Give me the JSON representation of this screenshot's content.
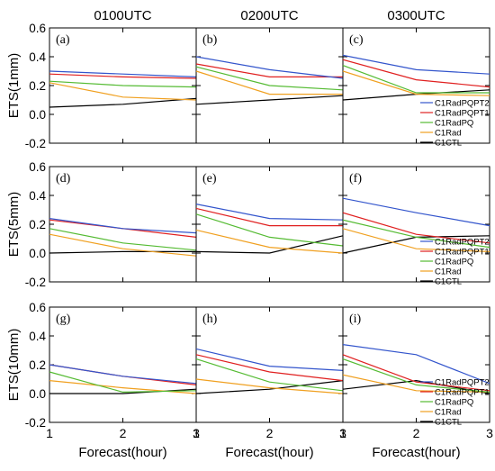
{
  "chart_data": {
    "type": "line",
    "x": [
      1,
      2,
      3
    ],
    "xlabel": "Forecast(hour)",
    "xlim": [
      1,
      3
    ],
    "ylim": [
      -0.2,
      0.6
    ],
    "yticks": [
      "-0.2",
      "0.0",
      "0.2",
      "0.4",
      "0.6"
    ],
    "xticks": [
      "1",
      "2",
      "3"
    ],
    "grid": false,
    "legend_location": "right",
    "legend_panels": [
      "c",
      "f",
      "i"
    ],
    "series_colors": {
      "C1RadPQPT2": "#3355cc",
      "C1RadPQPT1": "#e02020",
      "C1RadPQ": "#55bb33",
      "C1Rad": "#f0a020",
      "C1CTL": "#000000"
    },
    "series_names": [
      "C1RadPQPT2",
      "C1RadPQPT1",
      "C1RadPQ",
      "C1Rad",
      "C1CTL"
    ],
    "column_titles": [
      "0100UTC",
      "0200UTC",
      "0300UTC"
    ],
    "row_ylabels": [
      "ETS(1mm)",
      "ETS(5mm)",
      "ETS(10mm)"
    ],
    "panels": [
      {
        "label": "(a)",
        "series": [
          {
            "name": "C1RadPQPT2",
            "values": [
              0.3,
              0.28,
              0.26
            ]
          },
          {
            "name": "C1RadPQPT1",
            "values": [
              0.28,
              0.26,
              0.25
            ]
          },
          {
            "name": "C1RadPQ",
            "values": [
              0.23,
              0.2,
              0.19
            ]
          },
          {
            "name": "C1Rad",
            "values": [
              0.22,
              0.12,
              0.1
            ]
          },
          {
            "name": "C1CTL",
            "values": [
              0.05,
              0.07,
              0.11
            ]
          }
        ]
      },
      {
        "label": "(b)",
        "series": [
          {
            "name": "C1RadPQPT2",
            "values": [
              0.4,
              0.31,
              0.25
            ]
          },
          {
            "name": "C1RadPQPT1",
            "values": [
              0.35,
              0.26,
              0.26
            ]
          },
          {
            "name": "C1RadPQ",
            "values": [
              0.33,
              0.2,
              0.17
            ]
          },
          {
            "name": "C1Rad",
            "values": [
              0.3,
              0.14,
              0.14
            ]
          },
          {
            "name": "C1CTL",
            "values": [
              0.07,
              0.1,
              0.13
            ]
          }
        ]
      },
      {
        "label": "(c)",
        "series": [
          {
            "name": "C1RadPQPT2",
            "values": [
              0.41,
              0.31,
              0.28
            ]
          },
          {
            "name": "C1RadPQPT1",
            "values": [
              0.38,
              0.24,
              0.19
            ]
          },
          {
            "name": "C1RadPQ",
            "values": [
              0.34,
              0.15,
              0.15
            ]
          },
          {
            "name": "C1Rad",
            "values": [
              0.3,
              0.14,
              0.13
            ]
          },
          {
            "name": "C1CTL",
            "values": [
              0.1,
              0.14,
              0.17
            ]
          }
        ]
      },
      {
        "label": "(d)",
        "series": [
          {
            "name": "C1RadPQPT2",
            "values": [
              0.24,
              0.17,
              0.14
            ]
          },
          {
            "name": "C1RadPQPT1",
            "values": [
              0.23,
              0.17,
              0.11
            ]
          },
          {
            "name": "C1RadPQ",
            "values": [
              0.17,
              0.07,
              0.02
            ]
          },
          {
            "name": "C1Rad",
            "values": [
              0.13,
              0.03,
              -0.02
            ]
          },
          {
            "name": "C1CTL",
            "values": [
              0.0,
              0.01,
              0.01
            ]
          }
        ]
      },
      {
        "label": "(e)",
        "series": [
          {
            "name": "C1RadPQPT2",
            "values": [
              0.34,
              0.24,
              0.23
            ]
          },
          {
            "name": "C1RadPQPT1",
            "values": [
              0.31,
              0.19,
              0.19
            ]
          },
          {
            "name": "C1RadPQ",
            "values": [
              0.27,
              0.11,
              0.05
            ]
          },
          {
            "name": "C1Rad",
            "values": [
              0.16,
              0.04,
              0.0
            ]
          },
          {
            "name": "C1CTL",
            "values": [
              0.01,
              0.0,
              0.12
            ]
          }
        ]
      },
      {
        "label": "(f)",
        "series": [
          {
            "name": "C1RadPQPT2",
            "values": [
              0.38,
              0.28,
              0.19
            ]
          },
          {
            "name": "C1RadPQPT1",
            "values": [
              0.28,
              0.13,
              0.07
            ]
          },
          {
            "name": "C1RadPQ",
            "values": [
              0.23,
              0.11,
              0.04
            ]
          },
          {
            "name": "C1Rad",
            "values": [
              0.17,
              0.03,
              0.01
            ]
          },
          {
            "name": "C1CTL",
            "values": [
              0.0,
              0.11,
              0.12
            ]
          }
        ]
      },
      {
        "label": "(g)",
        "series": [
          {
            "name": "C1RadPQPT2",
            "values": [
              0.2,
              0.12,
              0.07
            ]
          },
          {
            "name": "C1RadPQPT1",
            "values": [
              0.2,
              0.12,
              0.06
            ]
          },
          {
            "name": "C1RadPQ",
            "values": [
              0.15,
              0.01,
              0.02
            ]
          },
          {
            "name": "C1Rad",
            "values": [
              0.09,
              0.04,
              0.0
            ]
          },
          {
            "name": "C1CTL",
            "values": [
              0.0,
              0.0,
              0.03
            ]
          }
        ]
      },
      {
        "label": "(h)",
        "series": [
          {
            "name": "C1RadPQPT2",
            "values": [
              0.31,
              0.19,
              0.16
            ]
          },
          {
            "name": "C1RadPQPT1",
            "values": [
              0.27,
              0.15,
              0.09
            ]
          },
          {
            "name": "C1RadPQ",
            "values": [
              0.24,
              0.08,
              0.02
            ]
          },
          {
            "name": "C1Rad",
            "values": [
              0.1,
              0.04,
              0.0
            ]
          },
          {
            "name": "C1CTL",
            "values": [
              0.0,
              0.03,
              0.09
            ]
          }
        ]
      },
      {
        "label": "(i)",
        "series": [
          {
            "name": "C1RadPQPT2",
            "values": [
              0.34,
              0.27,
              0.07
            ]
          },
          {
            "name": "C1RadPQPT1",
            "values": [
              0.27,
              0.08,
              0.02
            ]
          },
          {
            "name": "C1RadPQ",
            "values": [
              0.24,
              0.06,
              0.01
            ]
          },
          {
            "name": "C1Rad",
            "values": [
              0.13,
              0.02,
              0.01
            ]
          },
          {
            "name": "C1CTL",
            "values": [
              0.03,
              0.09,
              0.0
            ]
          }
        ]
      }
    ]
  }
}
